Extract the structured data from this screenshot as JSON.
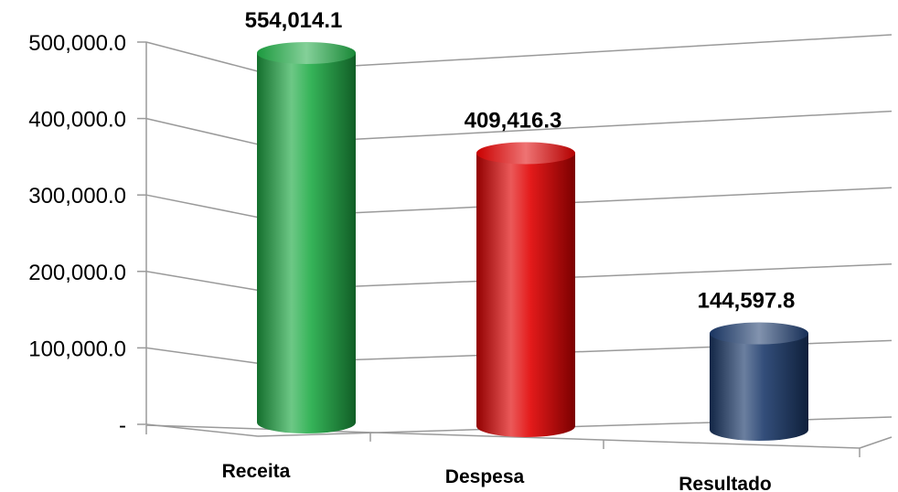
{
  "chart_data": {
    "type": "bar",
    "categories": [
      "Receita",
      "Despesa",
      "Resultado"
    ],
    "values": [
      554014.1,
      409416.3,
      144597.8
    ],
    "data_labels": [
      "554,014.1",
      "409,416.3",
      "144,597.8"
    ],
    "y_ticks": [
      0,
      100000,
      200000,
      300000,
      400000,
      500000
    ],
    "y_tick_labels": [
      "-",
      "100,000.0",
      "200,000.0",
      "300,000.0",
      "400,000.0",
      "500,000.0"
    ],
    "ylim": [
      0,
      500000
    ],
    "grid": true,
    "legend": "none",
    "colors": [
      "#1faa45",
      "#e00000",
      "#1c3a6b"
    ]
  }
}
